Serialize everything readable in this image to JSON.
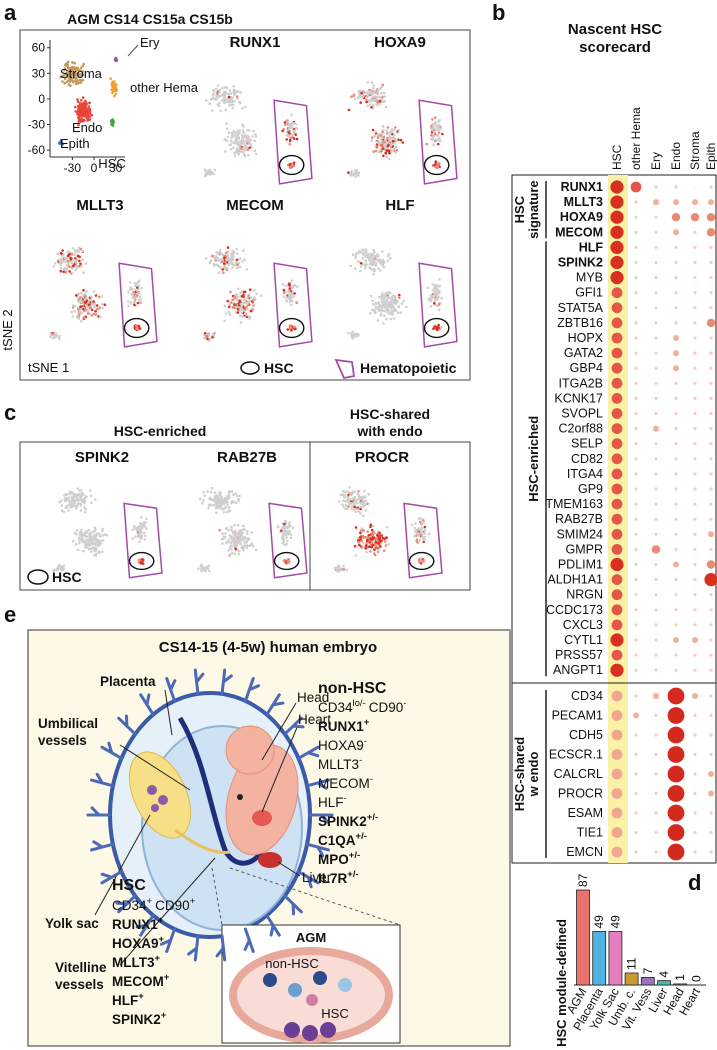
{
  "panel_a": {
    "label": "a",
    "title": "AGM CS14 CS15a CS15b",
    "inset": {
      "clusters": [
        "Stroma",
        "Ery",
        "other Hema",
        "Endo",
        "Epith",
        "HSC"
      ],
      "xlim": [
        -61,
        43
      ],
      "ylim": [
        -68,
        69
      ],
      "xticks": [
        -30,
        0,
        30
      ],
      "yticks": [
        60,
        30,
        0,
        -30,
        -60
      ]
    },
    "genes": [
      "RUNX1",
      "HOXA9",
      "MLLT3",
      "MECOM",
      "HLF"
    ],
    "ylabel": "tSNE 2",
    "xlabel": "tSNE 1",
    "legend": [
      "HSC",
      "Hematopoietic"
    ]
  },
  "panel_b": {
    "label": "b",
    "title": [
      "Nascent HSC",
      "scorecard"
    ],
    "columns": [
      "HSC",
      "other Hema",
      "Ery",
      "Endo",
      "Stroma",
      "Epith"
    ],
    "sections": [
      {
        "label": [
          "HSC",
          "signature"
        ],
        "rows": [
          {
            "gene": "RUNX1",
            "bold": true,
            "levels": [
              5,
              4,
              1,
              1,
              0,
              1
            ]
          },
          {
            "gene": "MLLT3",
            "bold": true,
            "levels": [
              5,
              1,
              2,
              2,
              2,
              2
            ]
          },
          {
            "gene": "HOXA9",
            "bold": true,
            "levels": [
              5,
              1,
              1,
              3,
              3,
              3
            ]
          },
          {
            "gene": "MECOM",
            "bold": true,
            "levels": [
              5,
              1,
              1,
              2,
              1,
              3
            ]
          }
        ]
      },
      {
        "label": [
          "HSC-enriched"
        ],
        "rows": [
          {
            "gene": "HLF",
            "bold": true,
            "levels": [
              5,
              1,
              1,
              1,
              1,
              1
            ]
          },
          {
            "gene": "SPINK2",
            "bold": true,
            "levels": [
              5,
              1,
              1,
              1,
              1,
              1
            ]
          },
          {
            "gene": "MYB",
            "bold": false,
            "levels": [
              5,
              1,
              1,
              1,
              1,
              1
            ]
          },
          {
            "gene": "GFI1",
            "bold": false,
            "levels": [
              4,
              1,
              1,
              1,
              1,
              1
            ]
          },
          {
            "gene": "STAT5A",
            "bold": false,
            "levels": [
              4,
              1,
              1,
              1,
              1,
              1
            ]
          },
          {
            "gene": "ZBTB16",
            "bold": false,
            "levels": [
              4,
              1,
              1,
              1,
              1,
              3
            ]
          },
          {
            "gene": "HOPX",
            "bold": false,
            "levels": [
              4,
              1,
              1,
              2,
              1,
              1
            ]
          },
          {
            "gene": "GATA2",
            "bold": false,
            "levels": [
              4,
              1,
              1,
              2,
              1,
              1
            ]
          },
          {
            "gene": "GBP4",
            "bold": false,
            "levels": [
              4,
              1,
              1,
              2,
              1,
              1
            ]
          },
          {
            "gene": "ITGA2B",
            "bold": false,
            "levels": [
              4,
              1,
              1,
              1,
              1,
              1
            ]
          },
          {
            "gene": "KCNK17",
            "bold": false,
            "levels": [
              4,
              1,
              1,
              1,
              1,
              1
            ]
          },
          {
            "gene": "SVOPL",
            "bold": false,
            "levels": [
              4,
              1,
              1,
              1,
              1,
              1
            ]
          },
          {
            "gene": "C2orf88",
            "bold": false,
            "levels": [
              4,
              1,
              2,
              1,
              1,
              1
            ]
          },
          {
            "gene": "SELP",
            "bold": false,
            "levels": [
              4,
              1,
              1,
              1,
              1,
              1
            ]
          },
          {
            "gene": "CD82",
            "bold": false,
            "levels": [
              4,
              1,
              1,
              1,
              1,
              1
            ]
          },
          {
            "gene": "ITGA4",
            "bold": false,
            "levels": [
              4,
              1,
              1,
              1,
              1,
              1
            ]
          },
          {
            "gene": "GP9",
            "bold": false,
            "levels": [
              4,
              1,
              1,
              1,
              1,
              1
            ]
          },
          {
            "gene": "TMEM163",
            "bold": false,
            "levels": [
              4,
              1,
              1,
              1,
              1,
              1
            ]
          },
          {
            "gene": "RAB27B",
            "bold": false,
            "levels": [
              4,
              1,
              1,
              1,
              1,
              1
            ]
          },
          {
            "gene": "SMIM24",
            "bold": false,
            "levels": [
              4,
              1,
              1,
              1,
              1,
              2
            ]
          },
          {
            "gene": "GMPR",
            "bold": false,
            "levels": [
              4,
              1,
              3,
              1,
              1,
              1
            ]
          },
          {
            "gene": "PDLIM1",
            "bold": false,
            "levels": [
              5,
              1,
              1,
              2,
              1,
              3
            ]
          },
          {
            "gene": "ALDH1A1",
            "bold": false,
            "levels": [
              4,
              1,
              1,
              1,
              1,
              5
            ]
          },
          {
            "gene": "NRGN",
            "bold": false,
            "levels": [
              4,
              1,
              1,
              1,
              1,
              1
            ]
          },
          {
            "gene": "CCDC173",
            "bold": false,
            "levels": [
              4,
              1,
              1,
              1,
              1,
              1
            ]
          },
          {
            "gene": "CXCL3",
            "bold": false,
            "levels": [
              4,
              1,
              1,
              1,
              1,
              1
            ]
          },
          {
            "gene": "CYTL1",
            "bold": false,
            "levels": [
              5,
              1,
              1,
              2,
              2,
              1
            ]
          },
          {
            "gene": "PRSS57",
            "bold": false,
            "levels": [
              4,
              1,
              1,
              1,
              1,
              1
            ]
          },
          {
            "gene": "ANGPT1",
            "bold": false,
            "levels": [
              5,
              1,
              1,
              1,
              1,
              1
            ]
          }
        ]
      },
      {
        "label": [
          "HSC-shared",
          "w endo"
        ],
        "rows": [
          {
            "gene": "CD34",
            "bold": false,
            "levels": [
              4,
              1,
              2,
              6,
              2,
              1
            ]
          },
          {
            "gene": "PECAM1",
            "bold": false,
            "levels": [
              4,
              2,
              1,
              6,
              1,
              1
            ]
          },
          {
            "gene": "CDH5",
            "bold": false,
            "levels": [
              4,
              1,
              1,
              6,
              1,
              1
            ]
          },
          {
            "gene": "ECSCR.1",
            "bold": false,
            "levels": [
              4,
              1,
              1,
              6,
              1,
              1
            ]
          },
          {
            "gene": "CALCRL",
            "bold": false,
            "levels": [
              4,
              1,
              1,
              6,
              1,
              2
            ]
          },
          {
            "gene": "PROCR",
            "bold": false,
            "levels": [
              4,
              1,
              1,
              6,
              1,
              2
            ]
          },
          {
            "gene": "ESAM",
            "bold": false,
            "levels": [
              4,
              1,
              1,
              6,
              1,
              1
            ]
          },
          {
            "gene": "TIE1",
            "bold": false,
            "levels": [
              4,
              1,
              1,
              6,
              1,
              1
            ]
          },
          {
            "gene": "EMCN",
            "bold": false,
            "levels": [
              4,
              1,
              1,
              6,
              1,
              1
            ]
          }
        ]
      }
    ]
  },
  "panel_c": {
    "label": "c",
    "groups": [
      {
        "title": [
          "HSC-enriched"
        ],
        "genes": [
          "SPINK2",
          "RAB27B"
        ]
      },
      {
        "title": [
          "HSC-shared",
          "with endo"
        ],
        "genes": [
          "PROCR"
        ]
      }
    ],
    "legend": "HSC"
  },
  "chart_data": {
    "type": "bar",
    "label": "d",
    "ylabel": "HSC module-defined",
    "categories": [
      "AGM",
      "Placenta",
      "Yolk Sac",
      "Umb. c.",
      "Vit. Vess",
      "Liver",
      "Head",
      "Heart"
    ],
    "values": [
      87,
      49,
      49,
      11,
      7,
      4,
      1,
      0
    ],
    "colors": [
      "#e8736c",
      "#4eb3e3",
      "#e57fc2",
      "#c99a36",
      "#9a72c2",
      "#3ebfb0",
      "#9a9a9a",
      "#9a9a9a"
    ]
  },
  "panel_e": {
    "label": "e",
    "title": "CS14-15 (4-5w) human embryo",
    "labels": {
      "placenta": [
        "Placenta"
      ],
      "umbilical": [
        "Umbilical",
        "vessels"
      ],
      "head": [
        "Head"
      ],
      "heart": [
        "Heart"
      ],
      "yolk": [
        "Yolk sac"
      ],
      "liver": [
        "Liver"
      ],
      "vitelline": [
        "Vitelline",
        "vessels"
      ]
    },
    "non_hsc": {
      "title": "non-HSC",
      "lines": [
        [
          {
            "t": "CD34",
            "s": "lo/-"
          },
          {
            "t": "CD90",
            "s": "-"
          }
        ],
        [
          {
            "t": "RUNX1",
            "s": "+",
            "b": true
          }
        ],
        [
          {
            "t": "HOXA9",
            "s": "-"
          }
        ],
        [
          {
            "t": "MLLT3",
            "s": "-"
          }
        ],
        [
          {
            "t": "MECOM",
            "s": "-"
          }
        ],
        [
          {
            "t": "HLF",
            "s": "-"
          }
        ],
        [
          {
            "t": "SPINK2",
            "s": "+/-",
            "b": true
          }
        ],
        [
          {
            "t": "C1QA",
            "s": "+/-",
            "b": true
          }
        ],
        [
          {
            "t": "MPO",
            "s": "+/-",
            "b": true
          }
        ],
        [
          {
            "t": "IL7R",
            "s": "+/-",
            "b": true
          }
        ]
      ]
    },
    "hsc": {
      "title": "HSC",
      "lines": [
        [
          {
            "t": "CD34",
            "s": "+"
          },
          {
            "t": "CD90",
            "s": "+"
          }
        ],
        [
          {
            "t": "RUNX1",
            "s": "+",
            "b": true
          }
        ],
        [
          {
            "t": "HOXA9",
            "s": "+",
            "b": true
          }
        ],
        [
          {
            "t": "MLLT3",
            "s": "+",
            "b": true
          }
        ],
        [
          {
            "t": "MECOM",
            "s": "+",
            "b": true
          }
        ],
        [
          {
            "t": "HLF",
            "s": "+",
            "b": true
          }
        ],
        [
          {
            "t": "SPINK2",
            "s": "+",
            "b": true
          }
        ]
      ]
    },
    "agm": {
      "title": "AGM",
      "non_hsc": "non-HSC",
      "hsc": "HSC"
    }
  }
}
